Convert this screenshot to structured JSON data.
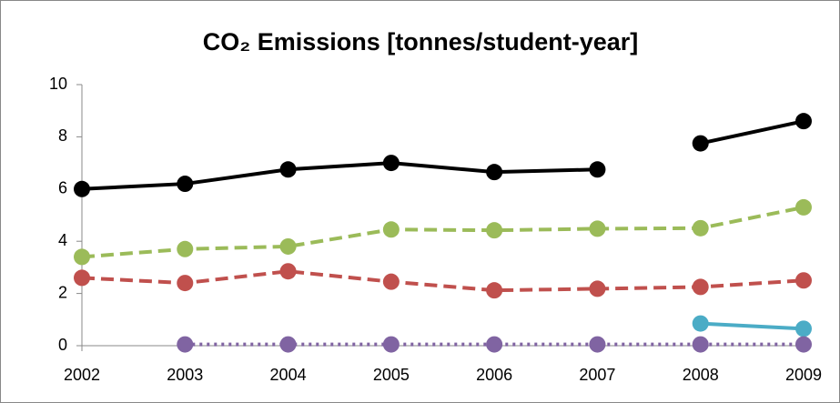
{
  "chart_data": {
    "type": "line",
    "title": "CO₂ Emissions [tonnes/student-year]",
    "categories": [
      "2002",
      "2003",
      "2004",
      "2005",
      "2006",
      "2007",
      "2008",
      "2009"
    ],
    "ylim": [
      0,
      10
    ],
    "yticks": [
      0,
      2,
      4,
      6,
      8,
      10
    ],
    "series": [
      {
        "color": "#000000",
        "dash": "solid",
        "values": [
          6.0,
          6.2,
          6.75,
          7.0,
          6.65,
          6.75,
          null,
          null
        ]
      },
      {
        "color": "#000000",
        "dash": "solid",
        "values": [
          null,
          null,
          null,
          null,
          null,
          null,
          7.75,
          8.6
        ]
      },
      {
        "color": "#9bbb59",
        "dash": "dashed",
        "values": [
          3.4,
          3.7,
          3.8,
          4.45,
          4.42,
          4.48,
          4.5,
          5.3
        ]
      },
      {
        "color": "#c0504d",
        "dash": "dashed",
        "values": [
          2.6,
          2.4,
          2.85,
          2.45,
          2.12,
          2.18,
          2.25,
          2.5
        ]
      },
      {
        "color": "#4bacc6",
        "dash": "solid",
        "values": [
          null,
          null,
          null,
          null,
          null,
          null,
          0.85,
          0.65
        ]
      },
      {
        "color": "#8064a2",
        "dash": "dotted",
        "values": [
          null,
          0.05,
          0.05,
          0.05,
          0.05,
          0.05,
          0.05,
          0.05
        ]
      }
    ]
  }
}
